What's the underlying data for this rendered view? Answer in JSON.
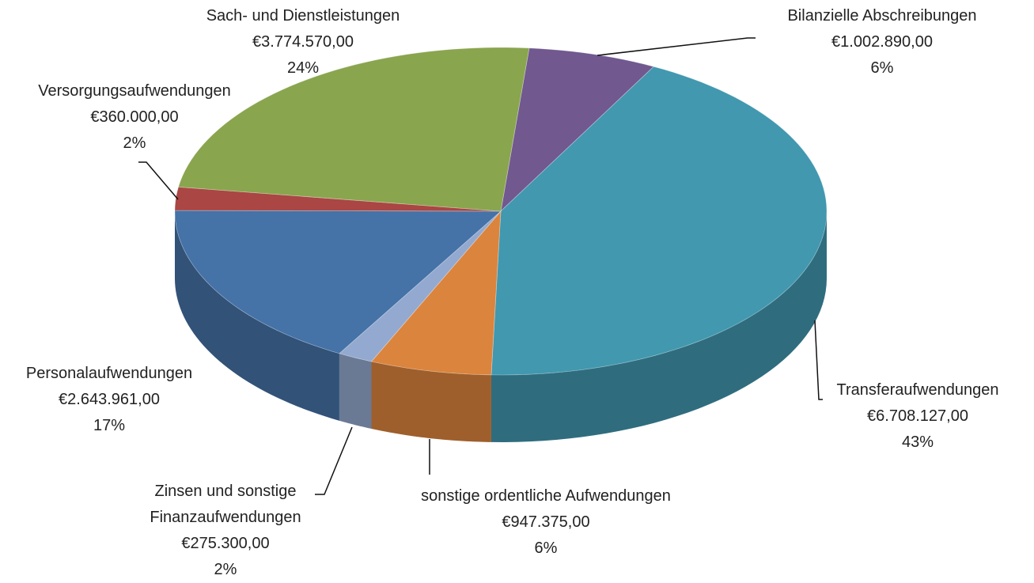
{
  "chart_data": {
    "type": "pie3d",
    "categories": [
      "Bilanzielle Abschreibungen",
      "Transferaufwendungen",
      "sonstige ordentliche Aufwendungen",
      "Zinsen und sonstige Finanzaufwendungen",
      "Personalaufwendungen",
      "Versorgungsaufwendungen",
      "Sach- und Dienstleistungen"
    ],
    "values": [
      1002890,
      6708127,
      947375,
      275300,
      2643961,
      360000,
      3774570
    ],
    "value_labels": [
      "€1.002.890,00",
      "€6.708.127,00",
      "€947.375,00",
      "€275.300,00",
      "€2.643.961,00",
      "€360.000,00",
      "€3.774.570,00"
    ],
    "percents": [
      6,
      43,
      6,
      2,
      17,
      2,
      24
    ],
    "percent_labels": [
      "6%",
      "43%",
      "6%",
      "2%",
      "17%",
      "2%",
      "24%"
    ],
    "colors": [
      "#71588f",
      "#4198af",
      "#db843d",
      "#93a9cf",
      "#4572a7",
      "#aa4643",
      "#89a54e"
    ]
  }
}
